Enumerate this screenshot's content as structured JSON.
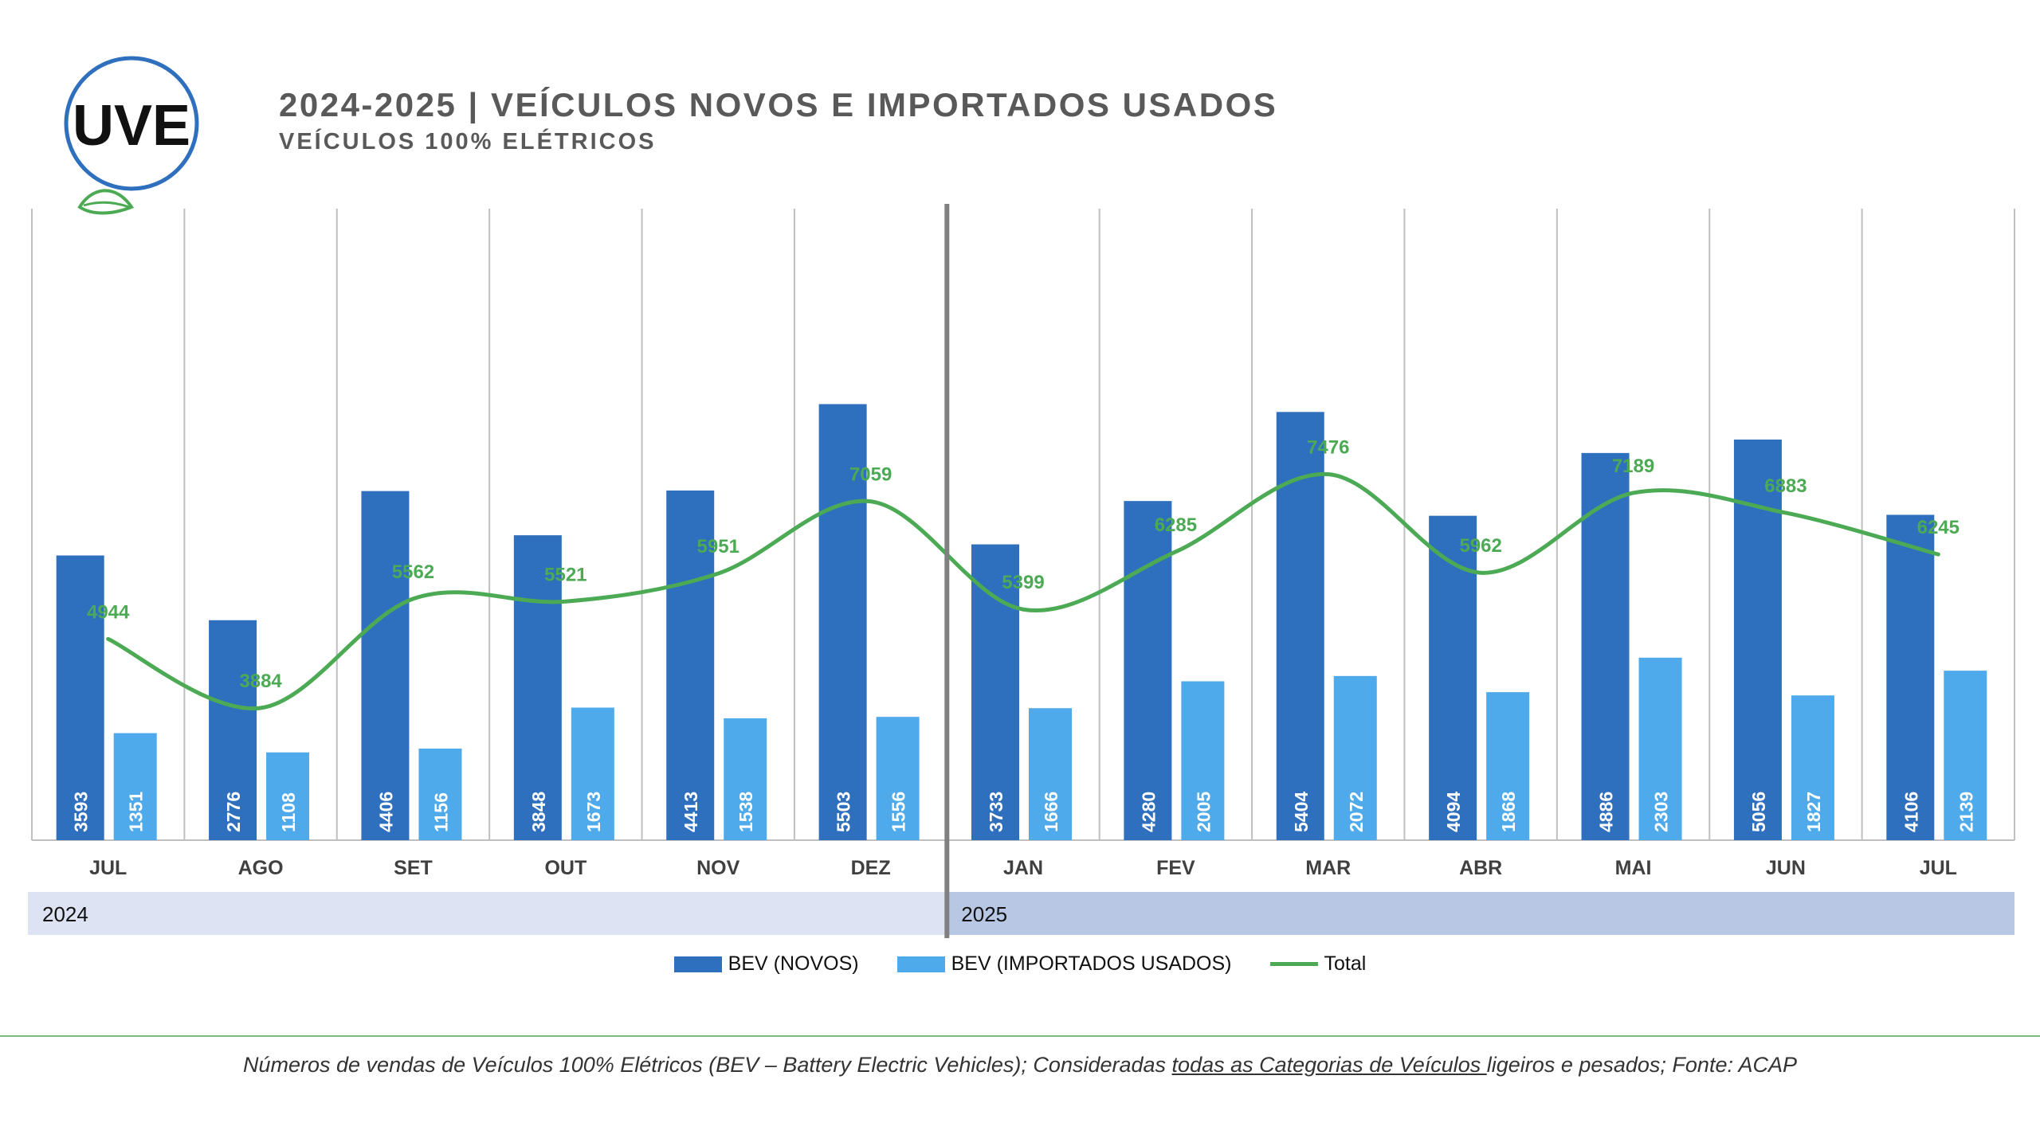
{
  "header": {
    "title": "2024-2025 | VEÍCULOS NOVOS E IMPORTADOS USADOS",
    "subtitle": "VEÍCULOS 100% ELÉTRICOS",
    "logo_text": "UVE"
  },
  "chart_data": {
    "type": "bar",
    "categories": [
      "JUL",
      "AGO",
      "SET",
      "OUT",
      "NOV",
      "DEZ",
      "JAN",
      "FEV",
      "MAR",
      "ABR",
      "MAI",
      "JUN",
      "JUL"
    ],
    "years": [
      {
        "label": "2024",
        "start": 0,
        "end": 5
      },
      {
        "label": "2025",
        "start": 6,
        "end": 12
      }
    ],
    "series": [
      {
        "name": "BEV (NOVOS)",
        "type": "bar",
        "color": "#2e6fbe",
        "values": [
          3593,
          2776,
          4406,
          3848,
          4413,
          5503,
          3733,
          4280,
          5404,
          4094,
          4886,
          5056,
          4106
        ]
      },
      {
        "name": "BEV (IMPORTADOS USADOS)",
        "type": "bar",
        "color": "#4eaaea",
        "values": [
          1351,
          1108,
          1156,
          1673,
          1538,
          1556,
          1666,
          2005,
          2072,
          1868,
          2303,
          1827,
          2139
        ]
      },
      {
        "name": "Total",
        "type": "line",
        "color": "#4caa55",
        "values": [
          4944,
          3884,
          5562,
          5521,
          5951,
          7059,
          5399,
          6285,
          7476,
          5962,
          7189,
          6883,
          6245
        ]
      }
    ],
    "legend_position": "bottom",
    "grid": "vertical separators"
  },
  "footnote": {
    "part1": "Números de vendas de Veículos 100% Elétricos (BEV – Battery Electric Vehicles); Consideradas ",
    "underlined": "todas as Categorias de Veículos ",
    "part2": "ligeiros e pesados; Fonte: ACAP"
  },
  "colors": {
    "year1_band": "#dde3f3",
    "year2_band": "#b8c7e4",
    "divider": "#808080",
    "title": "#595959",
    "logo_circle": "#2e6fbe",
    "logo_leaf": "#4caa55"
  }
}
